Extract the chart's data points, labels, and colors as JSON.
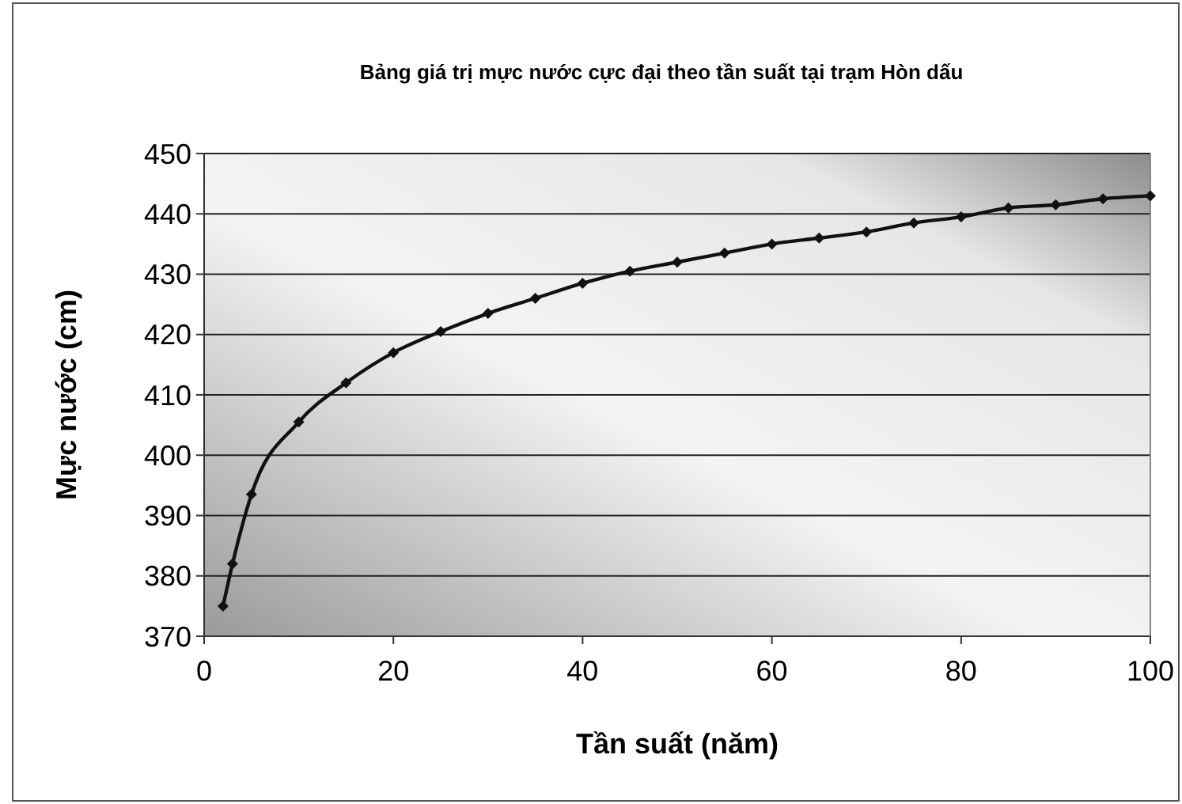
{
  "chart_data": {
    "type": "line",
    "title": "Bảng giá trị mực nước cực đại theo tần suất tại trạm Hòn dấu",
    "xlabel": "Tần suất (năm)",
    "ylabel": "Mực nước (cm)",
    "x": [
      2,
      3,
      5,
      10,
      15,
      20,
      25,
      30,
      35,
      40,
      45,
      50,
      55,
      60,
      65,
      70,
      75,
      80,
      85,
      90,
      95,
      100
    ],
    "series": [
      {
        "color": "#111111",
        "values": [
          375,
          382,
          393.5,
          405.5,
          412,
          417,
          420.5,
          423.5,
          426,
          428.5,
          430.5,
          432,
          433.5,
          435,
          436,
          437,
          438.5,
          439.5,
          441,
          441.5,
          442.5,
          443
        ]
      }
    ],
    "xlim": [
      0,
      100
    ],
    "xticks": [
      0,
      20,
      40,
      60,
      80,
      100
    ],
    "ylim": [
      370,
      450
    ],
    "yticks": [
      370,
      380,
      390,
      400,
      410,
      420,
      430,
      440,
      450
    ],
    "grid": "y",
    "marker": "diamond",
    "line_style": "solid"
  }
}
